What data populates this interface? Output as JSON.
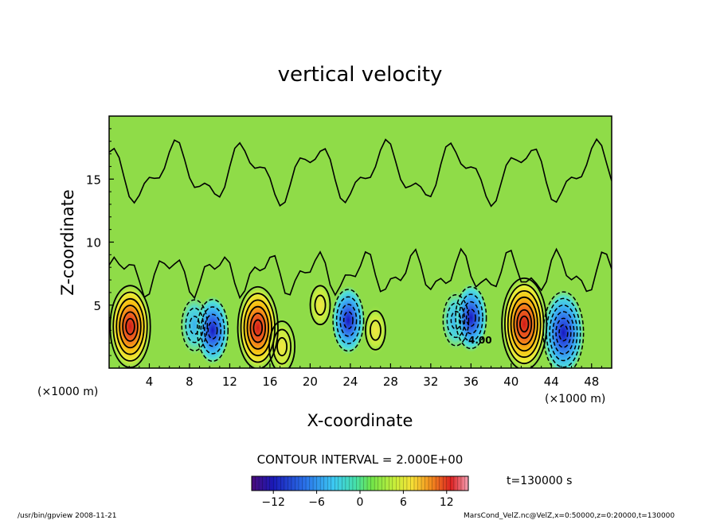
{
  "chart_data": {
    "type": "heatmap",
    "title": "vertical velocity",
    "xlabel": "X-coordinate",
    "ylabel": "Z-coordinate",
    "x_unit_label": "(×1000 m)",
    "x_unit_label_right": "(×1000 m)",
    "xlim": [
      0,
      50
    ],
    "ylim": [
      0,
      20
    ],
    "x_ticks": [
      4,
      8,
      12,
      16,
      20,
      24,
      28,
      32,
      36,
      40,
      44,
      48
    ],
    "y_ticks": [
      5,
      10,
      15
    ],
    "contour_interval_text": "CONTOUR INTERVAL = 2.000E+00",
    "time_text": "t=130000 s",
    "contour_label": "4.00",
    "colorbar": {
      "min": -15,
      "max": 15,
      "ticks": [
        -12,
        -6,
        0,
        6,
        12
      ],
      "tick_labels": [
        "−12",
        "−6",
        "0",
        "6",
        "12"
      ]
    },
    "features": [
      {
        "kind": "updraft",
        "x": 2.1,
        "z": 3.3,
        "value": 12
      },
      {
        "kind": "downdraft",
        "x": 8.5,
        "z": 3.4,
        "value": -6
      },
      {
        "kind": "downdraft",
        "x": 10.3,
        "z": 3.0,
        "value": -8
      },
      {
        "kind": "updraft",
        "x": 14.8,
        "z": 3.2,
        "value": 12
      },
      {
        "kind": "updraft",
        "x": 17.2,
        "z": 1.7,
        "value": 6
      },
      {
        "kind": "updraft",
        "x": 21.0,
        "z": 5.0,
        "value": 4
      },
      {
        "kind": "downdraft",
        "x": 23.8,
        "z": 3.8,
        "value": -8
      },
      {
        "kind": "updraft",
        "x": 26.5,
        "z": 3.0,
        "value": 4
      },
      {
        "kind": "downdraft",
        "x": 34.5,
        "z": 3.8,
        "value": -6
      },
      {
        "kind": "downdraft",
        "x": 36.0,
        "z": 4.0,
        "value": -8
      },
      {
        "kind": "updraft",
        "x": 41.3,
        "z": 3.5,
        "value": 14
      },
      {
        "kind": "downdraft",
        "x": 45.2,
        "z": 2.8,
        "value": -12
      }
    ]
  },
  "footer": {
    "left": "/usr/bin/gpview  2008-11-21",
    "right": "MarsCond_VelZ.nc@VelZ,x=0:50000,z=0:20000,t=130000"
  }
}
